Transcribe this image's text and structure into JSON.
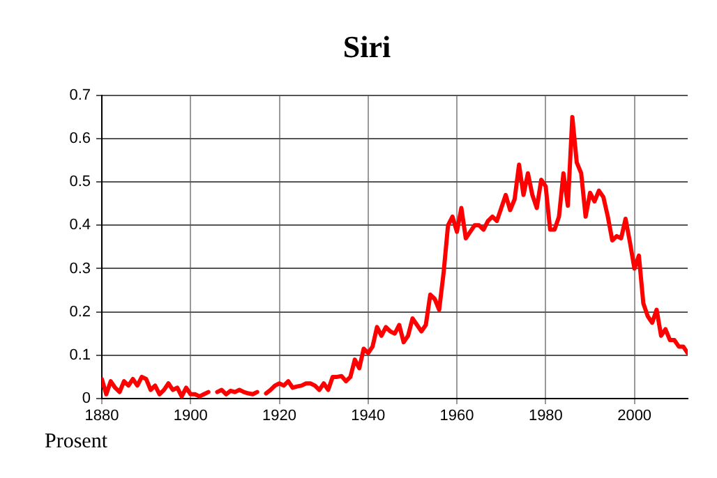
{
  "chart_data": {
    "type": "line",
    "title": "Siri",
    "ylabel": "Prosent",
    "x": [
      1880,
      1881,
      1882,
      1883,
      1884,
      1885,
      1886,
      1887,
      1888,
      1889,
      1890,
      1891,
      1892,
      1893,
      1894,
      1895,
      1896,
      1897,
      1898,
      1899,
      1900,
      1901,
      1902,
      1903,
      1904,
      1905,
      1906,
      1907,
      1908,
      1909,
      1910,
      1911,
      1912,
      1913,
      1914,
      1915,
      1916,
      1917,
      1918,
      1919,
      1920,
      1921,
      1922,
      1923,
      1924,
      1925,
      1926,
      1927,
      1928,
      1929,
      1930,
      1931,
      1932,
      1933,
      1934,
      1935,
      1936,
      1937,
      1938,
      1939,
      1940,
      1941,
      1942,
      1943,
      1944,
      1945,
      1946,
      1947,
      1948,
      1949,
      1950,
      1951,
      1952,
      1953,
      1954,
      1955,
      1956,
      1957,
      1958,
      1959,
      1960,
      1961,
      1962,
      1963,
      1964,
      1965,
      1966,
      1967,
      1968,
      1969,
      1970,
      1971,
      1972,
      1973,
      1974,
      1975,
      1976,
      1977,
      1978,
      1979,
      1980,
      1981,
      1982,
      1983,
      1984,
      1985,
      1986,
      1987,
      1988,
      1989,
      1990,
      1991,
      1992,
      1993,
      1994,
      1995,
      1996,
      1997,
      1998,
      1999,
      2000,
      2001,
      2002,
      2003,
      2004,
      2005,
      2006,
      2007,
      2008,
      2009,
      2010,
      2011,
      2012
    ],
    "series": [
      {
        "color": "#ff0000",
        "values": [
          0.045,
          0.01,
          0.04,
          0.025,
          0.015,
          0.04,
          0.03,
          0.045,
          0.03,
          0.05,
          0.045,
          0.02,
          0.03,
          0.01,
          0.02,
          0.035,
          0.02,
          0.025,
          0.005,
          0.025,
          0.01,
          0.01,
          0.005,
          0.01,
          0.015,
          null,
          0.015,
          0.02,
          0.01,
          0.018,
          0.015,
          0.02,
          0.015,
          0.012,
          0.01,
          0.015,
          null,
          0.012,
          0.02,
          0.03,
          0.035,
          0.03,
          0.04,
          0.025,
          0.028,
          0.03,
          0.035,
          0.035,
          0.03,
          0.02,
          0.035,
          0.02,
          0.05,
          0.05,
          0.052,
          0.04,
          0.05,
          0.09,
          0.07,
          0.115,
          0.105,
          0.12,
          0.165,
          0.145,
          0.165,
          0.155,
          0.15,
          0.17,
          0.13,
          0.145,
          0.185,
          0.17,
          0.155,
          0.17,
          0.24,
          0.23,
          0.205,
          0.29,
          0.4,
          0.42,
          0.385,
          0.44,
          0.37,
          0.385,
          0.4,
          0.4,
          0.39,
          0.41,
          0.42,
          0.41,
          0.44,
          0.47,
          0.435,
          0.46,
          0.54,
          0.47,
          0.52,
          0.47,
          0.44,
          0.505,
          0.49,
          0.39,
          0.39,
          0.42,
          0.52,
          0.445,
          0.65,
          0.545,
          0.52,
          0.42,
          0.475,
          0.455,
          0.48,
          0.465,
          0.42,
          0.365,
          0.375,
          0.37,
          0.415,
          0.36,
          0.3,
          0.33,
          0.22,
          0.19,
          0.175,
          0.205,
          0.145,
          0.16,
          0.135,
          0.135,
          0.12,
          0.12,
          0.105
        ]
      }
    ],
    "xlim": [
      1880,
      2012
    ],
    "xticks": [
      1880,
      1900,
      1920,
      1940,
      1960,
      1980,
      2000
    ],
    "ylim": [
      0,
      0.7
    ],
    "yticks": [
      0,
      0.1,
      0.2,
      0.3,
      0.4,
      0.5,
      0.6,
      0.7
    ],
    "grid": true,
    "legend": false,
    "marker": "none",
    "line_style": "solid"
  }
}
